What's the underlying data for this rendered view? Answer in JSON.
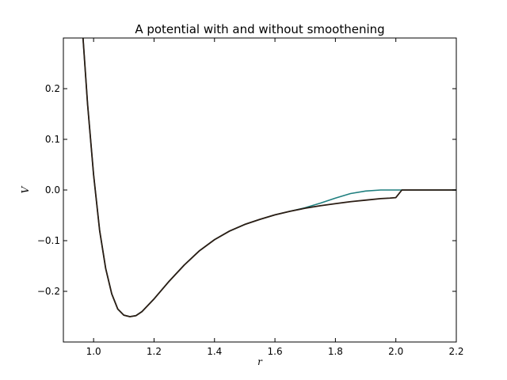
{
  "chart_data": {
    "type": "line",
    "title": "A potential with and without smoothening",
    "xlabel": "r",
    "ylabel": "V",
    "xlim": [
      0.9,
      2.2
    ],
    "ylim": [
      -0.3,
      0.3
    ],
    "xticks": [
      1.0,
      1.2,
      1.4,
      1.6,
      1.8,
      2.0,
      2.2
    ],
    "xtick_labels": [
      "1.0",
      "1.2",
      "1.4",
      "1.6",
      "1.8",
      "2.0",
      "2.2"
    ],
    "yticks": [
      -0.2,
      -0.1,
      0.0,
      0.1,
      0.2
    ],
    "ytick_labels": [
      "−0.2",
      "−0.1",
      "0.0",
      "0.1",
      "0.2"
    ],
    "grid": false,
    "legend": "none",
    "series": [
      {
        "color": "#1f7f7f",
        "x": [
          0.965,
          0.98,
          1.0,
          1.02,
          1.04,
          1.06,
          1.08,
          1.1,
          1.12,
          1.14,
          1.16,
          1.2,
          1.25,
          1.3,
          1.35,
          1.4,
          1.45,
          1.5,
          1.55,
          1.6,
          1.65,
          1.7,
          1.75,
          1.8,
          1.85,
          1.9,
          1.95,
          1.98,
          2.0,
          2.02,
          2.2
        ],
        "y": [
          0.3,
          0.17,
          0.03,
          -0.08,
          -0.155,
          -0.205,
          -0.235,
          -0.247,
          -0.25,
          -0.248,
          -0.24,
          -0.215,
          -0.18,
          -0.148,
          -0.12,
          -0.098,
          -0.081,
          -0.068,
          -0.058,
          -0.049,
          -0.042,
          -0.035,
          -0.026,
          -0.016,
          -0.007,
          -0.002,
          0.0,
          0.0,
          0.0,
          0.0,
          0.0
        ]
      },
      {
        "color": "#2b1d14",
        "x": [
          0.965,
          0.98,
          1.0,
          1.02,
          1.04,
          1.06,
          1.08,
          1.1,
          1.12,
          1.14,
          1.16,
          1.2,
          1.25,
          1.3,
          1.35,
          1.4,
          1.45,
          1.5,
          1.55,
          1.6,
          1.65,
          1.7,
          1.75,
          1.8,
          1.85,
          1.9,
          1.95,
          1.98,
          2.0,
          2.02,
          2.2
        ],
        "y": [
          0.3,
          0.17,
          0.03,
          -0.08,
          -0.155,
          -0.205,
          -0.235,
          -0.247,
          -0.25,
          -0.248,
          -0.24,
          -0.215,
          -0.18,
          -0.148,
          -0.12,
          -0.098,
          -0.081,
          -0.068,
          -0.058,
          -0.049,
          -0.042,
          -0.036,
          -0.031,
          -0.027,
          -0.023,
          -0.02,
          -0.017,
          -0.016,
          -0.015,
          0.0,
          0.0
        ]
      }
    ]
  }
}
